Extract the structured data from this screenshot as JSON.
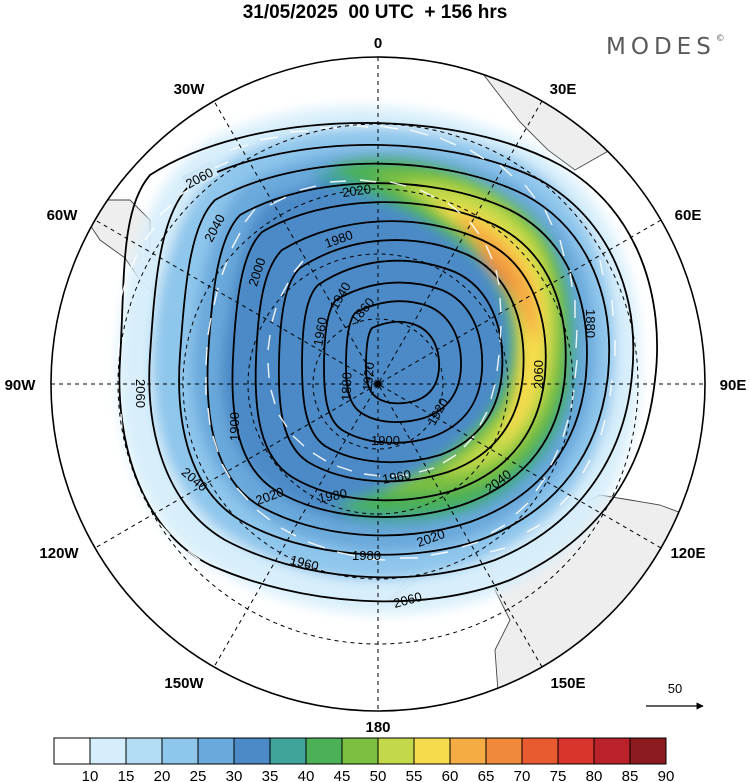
{
  "title": "31/05/2025  00 UTC  + 156 hrs",
  "brand": {
    "name": "MODES",
    "mark": "©"
  },
  "map": {
    "projection": "south-polar-stereographic",
    "longitude_labels": [
      "0",
      "30E",
      "60E",
      "90E",
      "120E",
      "150E",
      "180",
      "150W",
      "120W",
      "90W",
      "60W",
      "30W"
    ],
    "contour_labels": [
      "2060",
      "2040",
      "2020",
      "2000",
      "1980",
      "1960",
      "1940",
      "1920",
      "1900",
      "1880",
      "1860",
      "2060",
      "2040",
      "2020",
      "1980",
      "1960",
      "1920",
      "1900",
      "1880",
      "2060",
      "2040",
      "2020",
      "1980",
      "1960",
      "2060"
    ],
    "wind_reference_label": "50",
    "wind_reference_icon": "arrow-right-icon"
  },
  "colorbar": {
    "ticks": [
      "10",
      "15",
      "20",
      "25",
      "30",
      "35",
      "40",
      "45",
      "50",
      "55",
      "60",
      "65",
      "70",
      "75",
      "80",
      "85",
      "90"
    ],
    "colors": [
      "#ffffff",
      "#d6eefb",
      "#b3ddf5",
      "#8fc6ec",
      "#6aa9dc",
      "#4b8ac7",
      "#41a49b",
      "#4cb057",
      "#7cc041",
      "#c4d94a",
      "#f6dc4c",
      "#f5ac45",
      "#f08a3a",
      "#e85b30",
      "#d8352e",
      "#b9222b",
      "#8c1a1e"
    ]
  }
}
